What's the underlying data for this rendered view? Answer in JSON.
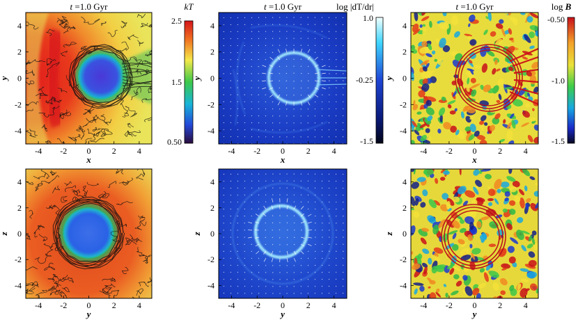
{
  "time_label": {
    "t": "t",
    "eq": " =1.0 Gyr"
  },
  "panels": [
    {
      "id": "temp-xy",
      "title_t": "t",
      "title_rest": " =1.0 Gyr",
      "xlabel": "x",
      "ylabel": "y",
      "field": "temperature"
    },
    {
      "id": "gradt-xy",
      "title_t": "t",
      "title_rest": " =1.0 Gyr",
      "xlabel": "x",
      "ylabel": "y",
      "field": "temperature-gradient"
    },
    {
      "id": "bfield-xy",
      "title_t": "t",
      "title_rest": " =1.0 Gyr",
      "xlabel": "x",
      "ylabel": "y",
      "field": "magnetic-field"
    },
    {
      "id": "temp-yz",
      "xlabel": "y",
      "ylabel": "z",
      "field": "temperature"
    },
    {
      "id": "gradt-yz",
      "xlabel": "y",
      "ylabel": "z",
      "field": "temperature-gradient"
    },
    {
      "id": "bfield-yz",
      "xlabel": "y",
      "ylabel": "z",
      "field": "magnetic-field"
    }
  ],
  "axis_ticks": [
    "-4",
    "-2",
    "0",
    "2",
    "4"
  ],
  "colorbars": {
    "kT": {
      "label": "kT",
      "ticks": [
        "2.5",
        "1.5",
        "0.50"
      ]
    },
    "gradT": {
      "label": "log |dT/dr|",
      "ticks": [
        "1.0",
        "-0.25",
        "-1.5"
      ]
    },
    "B": {
      "label_prefix": "log ",
      "label_var": "B",
      "ticks": [
        "-0.50",
        "-1.0",
        "-1.5"
      ]
    }
  },
  "colors": {
    "hot": "#e8201a",
    "warm": "#f3a13a",
    "yellow": "#f5e85a",
    "green": "#7ad04a",
    "cool": "#2c6ee6",
    "core": "#5a3ad0",
    "grad_bg": "#1836b8",
    "grad_ring": "#9fe8ff"
  }
}
